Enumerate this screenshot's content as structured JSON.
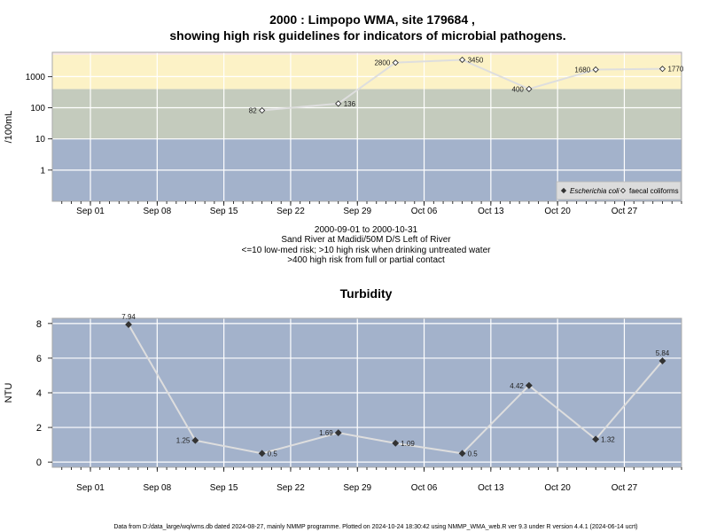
{
  "title_line1": "2000 : Limpopo WMA, site 179684 ,",
  "title_line2": "showing high risk guidelines for indicators of microbial pathogens.",
  "caption_lines": [
    "2000-09-01 to 2000-10-31",
    "Sand River at Madidi/50M D/S Left of River",
    "<=10 low-med risk; >10 high risk when drinking untreated water",
    ">400 high risk from full or partial contact"
  ],
  "footer": "Data from D:/data_large/wq/wms.db dated 2024-08-27, mainly NMMP programme. Plotted on 2024-10-24 18:30:42 using NMMP_WMA_web.R ver 9.3 under R version 4.4.1 (2024-06-14 ucrt)",
  "colors": {
    "band_blue": "#a3b2cb",
    "band_green": "#c4cbbd",
    "band_yellow": "#fcf2c6",
    "band_pink": "#f6e6e6",
    "grid": "#ffffff",
    "series_line": "#dedede",
    "marker": "#333333"
  },
  "chart_data": [
    {
      "type": "scatter",
      "title": "",
      "xlabel": "",
      "ylabel": "/100mL",
      "y_scale": "log",
      "x_range": [
        "2000-08-28",
        "2000-11-02"
      ],
      "ylim": [
        0.1,
        6000
      ],
      "x_ticks": [
        {
          "date": "2000-09-01",
          "label": "Sep 01"
        },
        {
          "date": "2000-09-08",
          "label": "Sep 08"
        },
        {
          "date": "2000-09-15",
          "label": "Sep 15"
        },
        {
          "date": "2000-09-22",
          "label": "Sep 22"
        },
        {
          "date": "2000-09-29",
          "label": "Sep 29"
        },
        {
          "date": "2000-10-06",
          "label": "Oct 06"
        },
        {
          "date": "2000-10-13",
          "label": "Oct 13"
        },
        {
          "date": "2000-10-20",
          "label": "Oct 20"
        },
        {
          "date": "2000-10-27",
          "label": "Oct 27"
        }
      ],
      "y_ticks": [
        {
          "value": 1,
          "label": "1"
        },
        {
          "value": 10,
          "label": "10"
        },
        {
          "value": 100,
          "label": "100"
        },
        {
          "value": 1000,
          "label": "1000"
        }
      ],
      "risk_bands": [
        {
          "from": 0.1,
          "to": 10,
          "color_key": "band_blue"
        },
        {
          "from": 10,
          "to": 400,
          "color_key": "band_green"
        },
        {
          "from": 400,
          "to": 5000,
          "color_key": "band_yellow"
        },
        {
          "from": 5000,
          "to": 6000,
          "color_key": "band_pink"
        }
      ],
      "grid": true,
      "legend_position": "bottom-right",
      "legend": [
        {
          "name": "Escherichia coli",
          "marker": "filled-diamond",
          "italic": true
        },
        {
          "name": "faecal coliforms",
          "marker": "open-diamond",
          "italic": false
        }
      ],
      "series": [
        {
          "name": "faecal coliforms",
          "points": [
            {
              "x": "2000-09-19",
              "y": 82,
              "label": "82",
              "label_side": "left"
            },
            {
              "x": "2000-09-27",
              "y": 136,
              "label": "136",
              "label_side": "right"
            },
            {
              "x": "2000-10-03",
              "y": 2800,
              "label": "2800",
              "label_side": "left"
            },
            {
              "x": "2000-10-10",
              "y": 3450,
              "label": "3450",
              "label_side": "right"
            },
            {
              "x": "2000-10-17",
              "y": 400,
              "label": "400",
              "label_side": "left"
            },
            {
              "x": "2000-10-24",
              "y": 1680,
              "label": "1680",
              "label_side": "left"
            },
            {
              "x": "2000-10-31",
              "y": 1770,
              "label": "1770",
              "label_side": "right"
            }
          ]
        }
      ]
    },
    {
      "type": "line",
      "title": "Turbidity",
      "xlabel": "",
      "ylabel": "NTU",
      "x_range": [
        "2000-08-28",
        "2000-11-02"
      ],
      "ylim": [
        -0.3,
        8.3
      ],
      "x_ticks": [
        {
          "date": "2000-09-01",
          "label": "Sep 01"
        },
        {
          "date": "2000-09-08",
          "label": "Sep 08"
        },
        {
          "date": "2000-09-15",
          "label": "Sep 15"
        },
        {
          "date": "2000-09-22",
          "label": "Sep 22"
        },
        {
          "date": "2000-09-29",
          "label": "Sep 29"
        },
        {
          "date": "2000-10-06",
          "label": "Oct 06"
        },
        {
          "date": "2000-10-13",
          "label": "Oct 13"
        },
        {
          "date": "2000-10-20",
          "label": "Oct 20"
        },
        {
          "date": "2000-10-27",
          "label": "Oct 27"
        }
      ],
      "y_ticks": [
        {
          "value": 0,
          "label": "0"
        },
        {
          "value": 2,
          "label": "2"
        },
        {
          "value": 4,
          "label": "4"
        },
        {
          "value": 6,
          "label": "6"
        },
        {
          "value": 8,
          "label": "8"
        }
      ],
      "grid": true,
      "series": [
        {
          "points": [
            {
              "x": "2000-09-05",
              "y": 7.94,
              "label": "7.94",
              "label_side": "above"
            },
            {
              "x": "2000-09-12",
              "y": 1.25,
              "label": "1.25",
              "label_side": "left"
            },
            {
              "x": "2000-09-19",
              "y": 0.5,
              "label": "0.5",
              "label_side": "right"
            },
            {
              "x": "2000-09-27",
              "y": 1.69,
              "label": "1.69",
              "label_side": "left"
            },
            {
              "x": "2000-10-03",
              "y": 1.09,
              "label": "1.09",
              "label_side": "right"
            },
            {
              "x": "2000-10-10",
              "y": 0.5,
              "label": "0.5",
              "label_side": "right"
            },
            {
              "x": "2000-10-17",
              "y": 4.42,
              "label": "4.42",
              "label_side": "left"
            },
            {
              "x": "2000-10-24",
              "y": 1.32,
              "label": "1.32",
              "label_side": "right"
            },
            {
              "x": "2000-10-31",
              "y": 5.84,
              "label": "5.84",
              "label_side": "above"
            }
          ]
        }
      ]
    }
  ]
}
